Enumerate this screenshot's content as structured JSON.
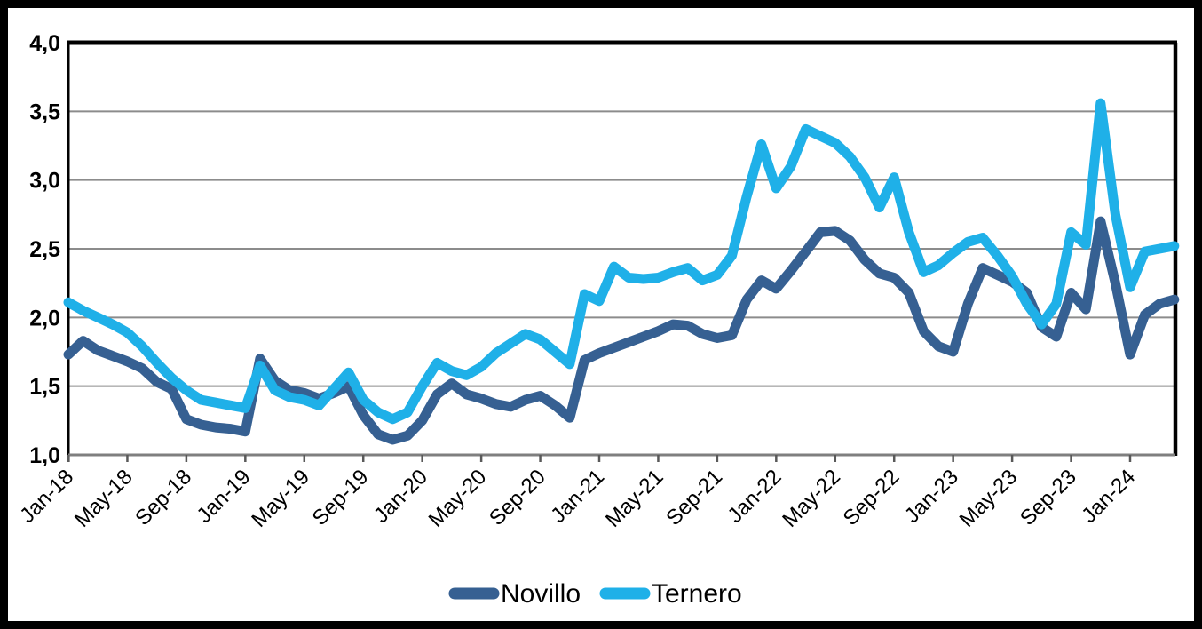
{
  "chart_data": {
    "type": "line",
    "title": "",
    "xlabel": "",
    "ylabel": "",
    "frequency": "monthly",
    "x_start": "Jan-18",
    "x_end": "Apr-24",
    "ylim": [
      1.0,
      4.0
    ],
    "y_tick_step": 0.5,
    "y_tick_labels": [
      "1,0",
      "1,5",
      "2,0",
      "2,5",
      "3,0",
      "3,5",
      "4,0"
    ],
    "y_tick_values": [
      1.0,
      1.5,
      2.0,
      2.5,
      3.0,
      3.5,
      4.0
    ],
    "x_tick_labels": [
      "Jan-18",
      "May-18",
      "Sep-18",
      "Jan-19",
      "May-19",
      "Sep-19",
      "Jan-20",
      "May-20",
      "Sep-20",
      "Jan-21",
      "May-21",
      "Sep-21",
      "Jan-22",
      "May-22",
      "Sep-22",
      "Jan-23",
      "May-23",
      "Sep-23",
      "Jan-24"
    ],
    "x_tick_month_indexes": [
      0,
      4,
      8,
      12,
      16,
      20,
      24,
      28,
      32,
      36,
      40,
      44,
      48,
      52,
      56,
      60,
      64,
      68,
      72
    ],
    "grid": true,
    "legend_position": "bottom",
    "series": [
      {
        "name": "Novillo",
        "color": "#366092",
        "values": [
          1.73,
          1.83,
          1.76,
          1.72,
          1.68,
          1.63,
          1.53,
          1.48,
          1.26,
          1.22,
          1.2,
          1.19,
          1.17,
          1.7,
          1.54,
          1.47,
          1.45,
          1.41,
          1.45,
          1.5,
          1.29,
          1.15,
          1.11,
          1.14,
          1.25,
          1.44,
          1.52,
          1.44,
          1.41,
          1.37,
          1.35,
          1.4,
          1.43,
          1.36,
          1.27,
          1.69,
          1.74,
          1.78,
          1.82,
          1.86,
          1.9,
          1.95,
          1.94,
          1.88,
          1.85,
          1.87,
          2.13,
          2.27,
          2.21,
          2.34,
          2.48,
          2.62,
          2.63,
          2.56,
          2.42,
          2.32,
          2.29,
          2.18,
          1.9,
          1.79,
          1.75,
          2.1,
          2.36,
          2.31,
          2.26,
          2.18,
          1.93,
          1.86,
          2.18,
          2.06,
          2.7,
          2.25,
          1.73,
          2.02,
          2.1,
          2.13
        ]
      },
      {
        "name": "Ternero",
        "color": "#1FB0E8",
        "values": [
          2.11,
          2.05,
          2.0,
          1.95,
          1.89,
          1.79,
          1.67,
          1.56,
          1.47,
          1.4,
          1.38,
          1.36,
          1.34,
          1.65,
          1.47,
          1.42,
          1.4,
          1.36,
          1.48,
          1.6,
          1.4,
          1.31,
          1.26,
          1.31,
          1.5,
          1.67,
          1.61,
          1.58,
          1.64,
          1.74,
          1.81,
          1.88,
          1.84,
          1.75,
          1.66,
          2.17,
          2.12,
          2.37,
          2.29,
          2.28,
          2.29,
          2.33,
          2.36,
          2.27,
          2.31,
          2.45,
          2.88,
          3.26,
          2.94,
          3.1,
          3.37,
          3.32,
          3.27,
          3.17,
          3.02,
          2.8,
          3.02,
          2.62,
          2.33,
          2.38,
          2.47,
          2.55,
          2.58,
          2.45,
          2.3,
          2.1,
          1.95,
          2.1,
          2.62,
          2.53,
          3.56,
          2.75,
          2.22,
          2.48,
          2.5,
          2.52
        ]
      }
    ]
  },
  "legend": {
    "novillo_label": "Novillo",
    "ternero_label": "Ternero"
  },
  "colors": {
    "novillo": "#366092",
    "ternero": "#1FB0E8",
    "gridline": "#8C8C8C",
    "axis_line": "#7F7F7F",
    "tick": "#595959",
    "plot_border": "#000000",
    "text": "#000000",
    "background": "#FFFFFF"
  }
}
